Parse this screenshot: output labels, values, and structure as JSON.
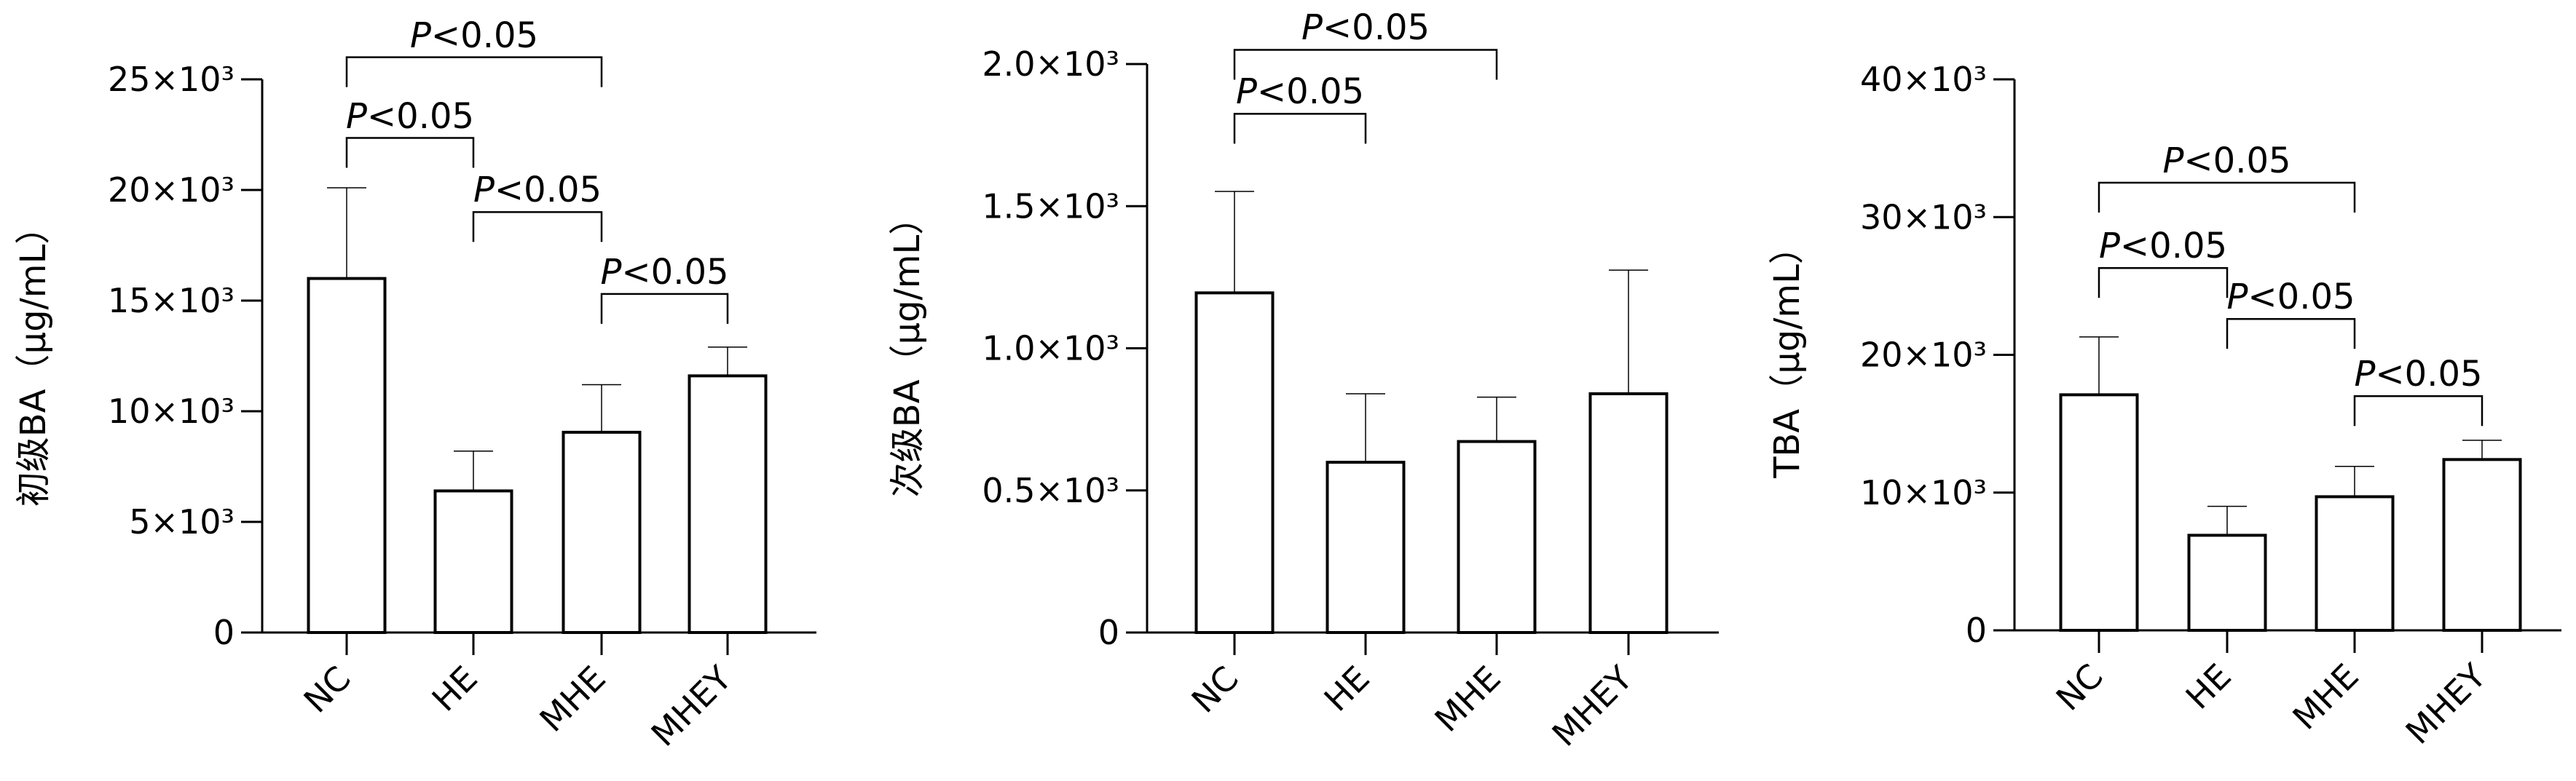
{
  "chart_data": [
    {
      "type": "bar",
      "title": "",
      "ylabel": "初级BA（μg/mL）",
      "xlabel": "",
      "categories": [
        "NC",
        "HE",
        "MHE",
        "MHEY"
      ],
      "values": [
        16000,
        6400,
        9050,
        11600
      ],
      "error_upper": [
        20100,
        8200,
        11200,
        12900
      ],
      "ylim": [
        0,
        25000
      ],
      "yticks": [
        0,
        5000,
        10000,
        15000,
        20000,
        25000
      ],
      "ytick_labels": [
        "0",
        "5×10³",
        "10×10³",
        "15×10³",
        "20×10³",
        "25×10³"
      ],
      "grid": false,
      "bar_fill": "#ffffff",
      "bar_edge": "#000000",
      "significance": [
        {
          "from": "NC",
          "to": "MHE",
          "y": 26000,
          "label": "P<0.05"
        },
        {
          "from": "NC",
          "to": "HE",
          "y": 22350,
          "label": "P<0.05"
        },
        {
          "from": "HE",
          "to": "MHE",
          "y": 19000,
          "label": "P<0.05"
        },
        {
          "from": "MHE",
          "to": "MHEY",
          "y": 15300,
          "label": "P<0.05"
        }
      ]
    },
    {
      "type": "bar",
      "title": "",
      "ylabel": "次级BA（μg/mL）",
      "xlabel": "",
      "categories": [
        "NC",
        "HE",
        "MHE",
        "MHEY"
      ],
      "values": [
        1195,
        599,
        672,
        840
      ],
      "error_upper": [
        1552,
        840,
        828,
        1275
      ],
      "ylim": [
        0,
        2000
      ],
      "yticks": [
        0,
        500,
        1000,
        1500,
        2000
      ],
      "ytick_labels": [
        "0",
        "0.5×10³",
        "1.0×10³",
        "1.5×10³",
        "2.0×10³"
      ],
      "grid": false,
      "bar_fill": "#ffffff",
      "bar_edge": "#000000",
      "significance": [
        {
          "from": "NC",
          "to": "MHE",
          "y": 2050,
          "label": "P<0.05"
        },
        {
          "from": "NC",
          "to": "HE",
          "y": 1825,
          "label": "P<0.05"
        }
      ]
    },
    {
      "type": "bar",
      "title": "",
      "ylabel": "TBA（μg/mL）",
      "xlabel": "",
      "categories": [
        "NC",
        "HE",
        "MHE",
        "MHEY"
      ],
      "values": [
        17100,
        6900,
        9700,
        12400
      ],
      "error_upper": [
        21300,
        9000,
        11900,
        13800
      ],
      "ylim": [
        0,
        40000
      ],
      "yticks": [
        0,
        10000,
        20000,
        30000,
        40000
      ],
      "ytick_labels": [
        "0",
        "10×10³",
        "20×10³",
        "30×10³",
        "40×10³"
      ],
      "grid": false,
      "bar_fill": "#ffffff",
      "bar_edge": "#000000",
      "significance": [
        {
          "from": "NC",
          "to": "MHE",
          "y": 32500,
          "label": "P<0.05"
        },
        {
          "from": "NC",
          "to": "HE",
          "y": 26300,
          "label": "P<0.05"
        },
        {
          "from": "HE",
          "to": "MHE",
          "y": 22600,
          "label": "P<0.05"
        },
        {
          "from": "MHE",
          "to": "MHEY",
          "y": 17000,
          "label": "P<0.05"
        }
      ]
    }
  ]
}
